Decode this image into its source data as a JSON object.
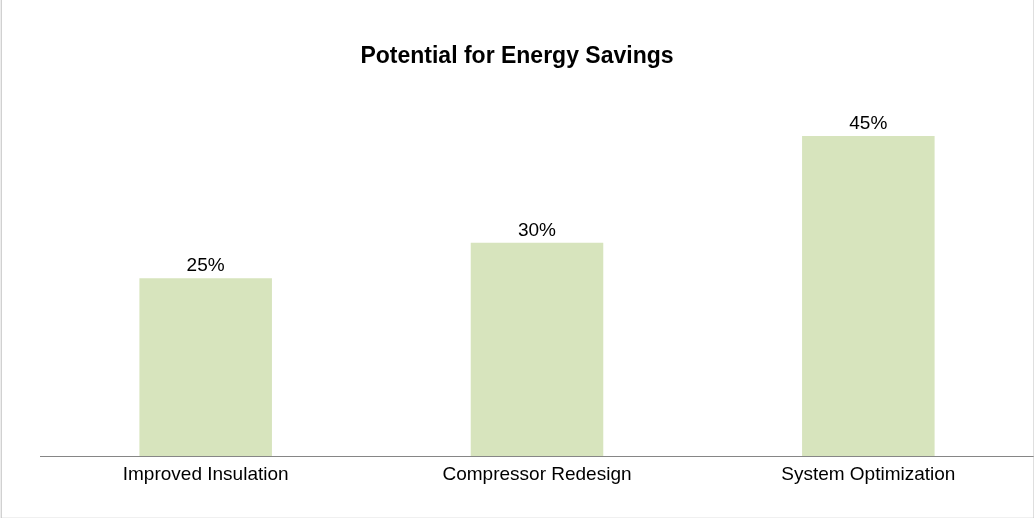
{
  "chart_data": {
    "type": "bar",
    "title": "Potential for Energy Savings",
    "categories": [
      "Improved Insulation",
      "Compressor Redesign",
      "System Optimization"
    ],
    "values": [
      25,
      30,
      45
    ],
    "value_labels": [
      "25%",
      "30%",
      "45%"
    ],
    "color": "#d7e4bd",
    "legend": false
  }
}
